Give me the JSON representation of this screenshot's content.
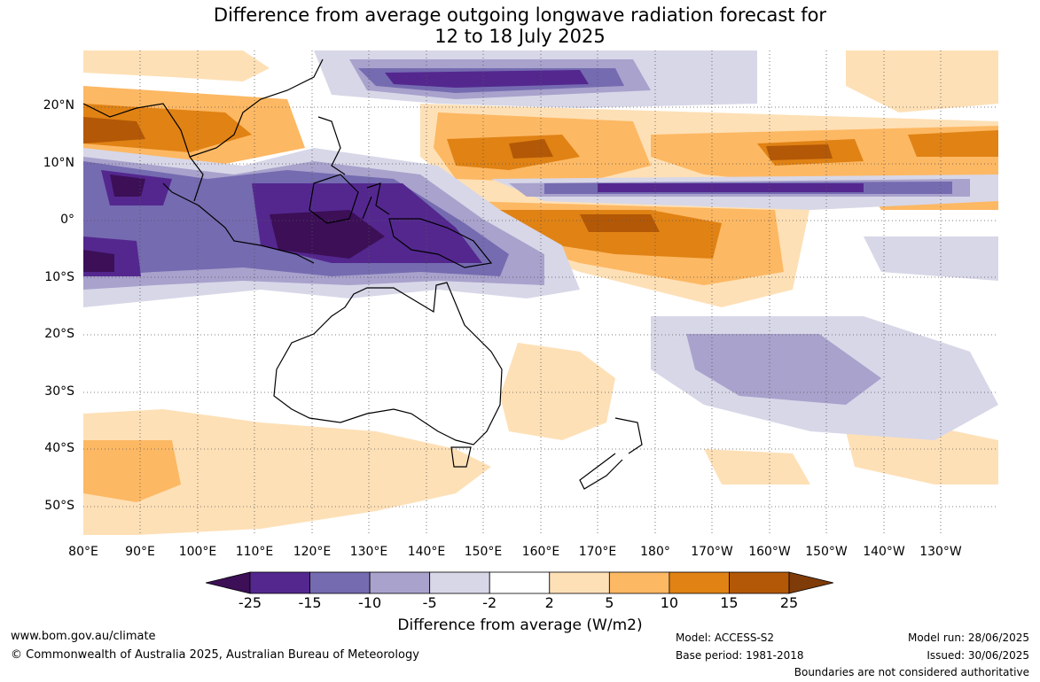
{
  "title": {
    "line1": "Difference from average outgoing longwave radiation forecast for",
    "line2": "12 to 18 July 2025"
  },
  "lat_labels": [
    "20°N",
    "10°N",
    "0°",
    "10°S",
    "20°S",
    "30°S",
    "40°S",
    "50°S"
  ],
  "lon_labels": [
    "80°E",
    "90°E",
    "100°E",
    "110°E",
    "120°E",
    "130°E",
    "140°E",
    "150°E",
    "160°E",
    "170°E",
    "180°",
    "170°W",
    "160°W",
    "150°W",
    "140°W",
    "130°W"
  ],
  "colorbar": {
    "ticks": [
      "-25",
      "-15",
      "-10",
      "-5",
      "-2",
      "2",
      "5",
      "10",
      "15",
      "25"
    ],
    "colors": [
      "#3c0f57",
      "#54278f",
      "#756bb1",
      "#a8a2cc",
      "#d7d7e8",
      "#ffffff",
      "#fee0b6",
      "#fdb863",
      "#e08214",
      "#b35806",
      "#7f3b08"
    ],
    "label": "Difference from average (W/m2)"
  },
  "footer": {
    "url": "www.bom.gov.au/climate",
    "copyright": "© Commonwealth of Australia 2025, Australian Bureau of Meteorology",
    "model": "Model: ACCESS-S2",
    "base_period": "Base period: 1981-2018",
    "model_run": "Model run: 28/06/2025",
    "issued": "Issued: 30/06/2025",
    "disclaimer": "Boundaries are not considered authoritative"
  }
}
